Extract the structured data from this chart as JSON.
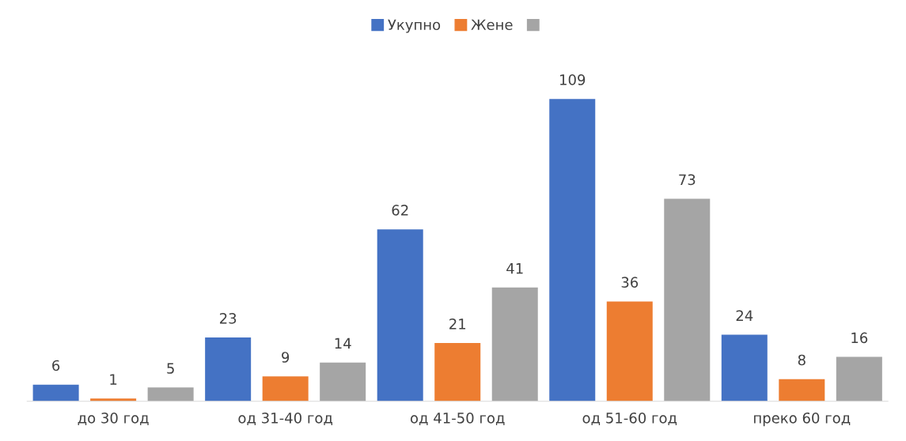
{
  "chart_data": {
    "type": "bar",
    "categories": [
      "до 30 год",
      "од 31-40 год",
      "од 41-50 год",
      "од 51-60 год",
      "преко 60 год"
    ],
    "series": [
      {
        "name": "Укупно",
        "color": "#4472c4",
        "values": [
          6,
          23,
          62,
          109,
          24
        ]
      },
      {
        "name": "Жене",
        "color": "#ed7d31",
        "values": [
          1,
          9,
          21,
          36,
          8
        ]
      },
      {
        "color": "#a5a5a5",
        "values": [
          5,
          14,
          41,
          73,
          16
        ]
      }
    ],
    "data_labels": true,
    "legend": "top",
    "grid": false
  }
}
